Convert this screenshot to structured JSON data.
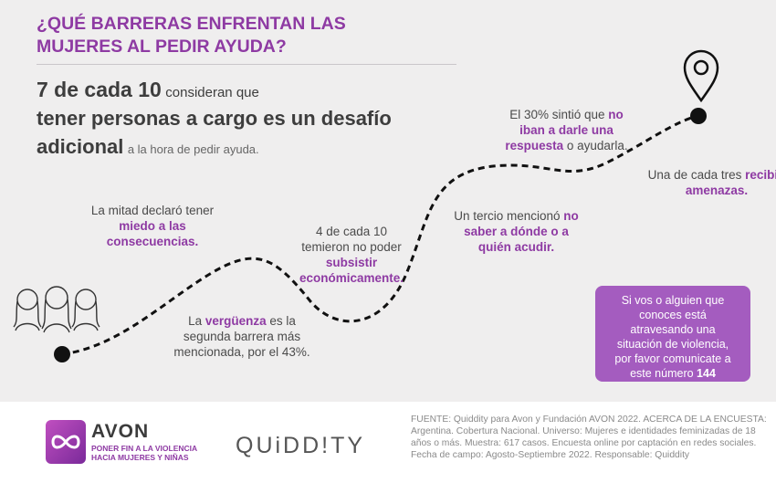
{
  "header": {
    "title_lines": [
      "¿QUÉ BARRERAS ENFRENTAN LAS",
      "MUJERES AL PEDIR AYUDA?"
    ]
  },
  "headline": [
    "7 de cada 10",
    "consideran que",
    "tener personas a cargo es un desafío adicional",
    "a la hora de pedir ayuda."
  ],
  "steps": [
    [
      {
        "text": "La mitad declaró tener",
        "bold": false
      },
      {
        "text": "miedo a las consecuencias.",
        "bold": true
      }
    ],
    [
      {
        "text": "La",
        "bold": false
      },
      {
        "text": "vergüenza",
        "bold": true
      },
      {
        "text": "es la segunda barrera más mencionada, por el 43%.",
        "bold": false
      }
    ],
    [
      {
        "text": "4 de cada 10 temieron no poder",
        "bold": false
      },
      {
        "text": "subsistir económicamente.",
        "bold": true
      }
    ],
    [
      {
        "text": "Un tercio mencionó",
        "bold": false
      },
      {
        "text": "no saber a dónde o a quién acudir.",
        "bold": true
      }
    ],
    [
      {
        "text": "El 30% sintió que",
        "bold": false
      },
      {
        "text": "no iban a darle una respuesta",
        "bold": true
      },
      {
        "text": "o ayudarla.",
        "bold": false
      }
    ],
    [
      {
        "text": "Una de cada tres",
        "bold": false
      },
      {
        "text": "recibió amenazas.",
        "bold": true
      }
    ]
  ],
  "callout": [
    {
      "text": "Si vos o alguien que conoces está atravesando una situación de violencia, por favor comunicate a este número",
      "bold": false
    },
    {
      "text": "144",
      "bold": true
    }
  ],
  "footer": {
    "brand": "AVON",
    "tagline": [
      "PONER FIN A LA VIOLENCIA",
      "HACIA MUJERES Y NIÑAS"
    ],
    "partner": "QUiDD!TY",
    "source": "FUENTE: Quiddity para Avon y Fundación AVON 2022. ACERCA DE LA ENCUESTA: Argentina. Cobertura Nacional. Universo: Mujeres e identidades feminizadas de 18 años o más. Muestra: 617 casos. Encuesta online por captación en redes sociales. Fecha de campo: Agosto-Septiembre 2022. Responsable: Quiddity"
  }
}
